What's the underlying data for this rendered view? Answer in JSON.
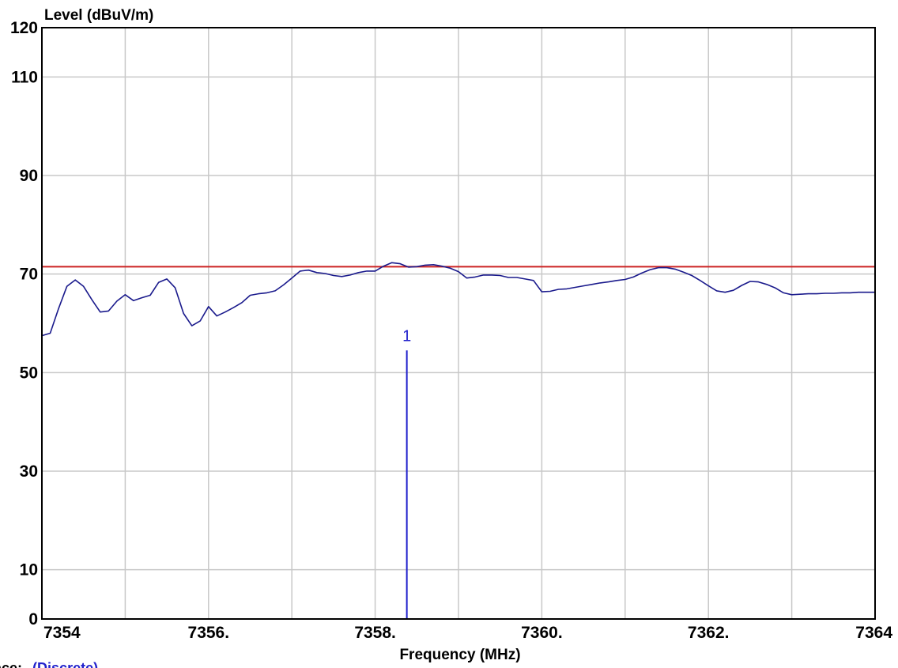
{
  "chart_data": {
    "type": "line",
    "ylabel": "Level (dBuV/m)",
    "xlabel": "Frequency (MHz)",
    "xlim": [
      7354,
      7364
    ],
    "ylim": [
      0,
      120
    ],
    "x_ticks": [
      7354,
      7356,
      7358,
      7360,
      7362,
      7364
    ],
    "x_tick_labels": [
      "7354",
      "7356.",
      "7358.",
      "7360.",
      "7362.",
      "7364"
    ],
    "y_ticks": [
      0,
      10,
      30,
      50,
      70,
      90,
      110,
      120
    ],
    "y_tick_labels": [
      "0",
      "10",
      "30",
      "50",
      "70",
      "90",
      "110",
      "120"
    ],
    "x_grid": [
      7355,
      7356,
      7357,
      7358,
      7359,
      7360,
      7361,
      7362,
      7363
    ],
    "y_grid": [
      10,
      30,
      50,
      70,
      90,
      110
    ],
    "grid": true,
    "limit_line": {
      "y": 71.5,
      "color": "#cc2222"
    },
    "series": [
      {
        "color": "#1a1a8c",
        "x": [
          7354.0,
          7354.1,
          7354.2,
          7354.3,
          7354.4,
          7354.5,
          7354.6,
          7354.7,
          7354.8,
          7354.9,
          7355.0,
          7355.1,
          7355.2,
          7355.3,
          7355.4,
          7355.5,
          7355.6,
          7355.7,
          7355.8,
          7355.9,
          7356.0,
          7356.1,
          7356.2,
          7356.3,
          7356.4,
          7356.5,
          7356.6,
          7356.7,
          7356.8,
          7356.9,
          7357.0,
          7357.1,
          7357.2,
          7357.3,
          7357.4,
          7357.5,
          7357.6,
          7357.7,
          7357.8,
          7357.9,
          7358.0,
          7358.1,
          7358.2,
          7358.3,
          7358.4,
          7358.5,
          7358.6,
          7358.7,
          7358.8,
          7358.9,
          7359.0,
          7359.1,
          7359.2,
          7359.3,
          7359.4,
          7359.5,
          7359.6,
          7359.7,
          7359.8,
          7359.9,
          7360.0,
          7360.1,
          7360.2,
          7360.3,
          7360.4,
          7360.5,
          7360.6,
          7360.7,
          7360.8,
          7360.9,
          7361.0,
          7361.1,
          7361.2,
          7361.3,
          7361.4,
          7361.5,
          7361.6,
          7361.7,
          7361.8,
          7361.9,
          7362.0,
          7362.1,
          7362.2,
          7362.3,
          7362.4,
          7362.5,
          7362.6,
          7362.7,
          7362.8,
          7362.9,
          7363.0,
          7363.1,
          7363.2,
          7363.3,
          7363.4,
          7363.5,
          7363.6,
          7363.7,
          7363.8,
          7363.9,
          7364.0
        ],
        "y": [
          57.5,
          58.0,
          63.0,
          67.5,
          68.8,
          67.5,
          64.8,
          62.3,
          62.5,
          64.5,
          65.8,
          64.6,
          65.2,
          65.7,
          68.3,
          69.0,
          67.2,
          62.0,
          59.5,
          60.5,
          63.4,
          61.5,
          62.3,
          63.2,
          64.2,
          65.7,
          66.0,
          66.2,
          66.6,
          67.8,
          69.2,
          70.6,
          70.8,
          70.3,
          70.1,
          69.7,
          69.5,
          69.8,
          70.3,
          70.6,
          70.6,
          71.6,
          72.3,
          72.1,
          71.4,
          71.5,
          71.8,
          71.9,
          71.6,
          71.2,
          70.5,
          69.2,
          69.4,
          69.8,
          69.8,
          69.7,
          69.3,
          69.3,
          69.0,
          68.7,
          66.4,
          66.5,
          66.9,
          67.0,
          67.3,
          67.6,
          67.9,
          68.2,
          68.4,
          68.7,
          68.9,
          69.4,
          70.2,
          70.9,
          71.3,
          71.3,
          71.0,
          70.4,
          69.7,
          68.7,
          67.6,
          66.6,
          66.3,
          66.7,
          67.7,
          68.5,
          68.4,
          67.9,
          67.2,
          66.2,
          65.8,
          65.9,
          66.0,
          66.0,
          66.1,
          66.1,
          66.2,
          66.2,
          66.3,
          66.3,
          66.3
        ]
      }
    ],
    "marker": {
      "label": "1",
      "x": 7358.38,
      "y": 54.5
    }
  },
  "legend": {
    "prefix": "ace:",
    "value": "(Discrete)"
  }
}
